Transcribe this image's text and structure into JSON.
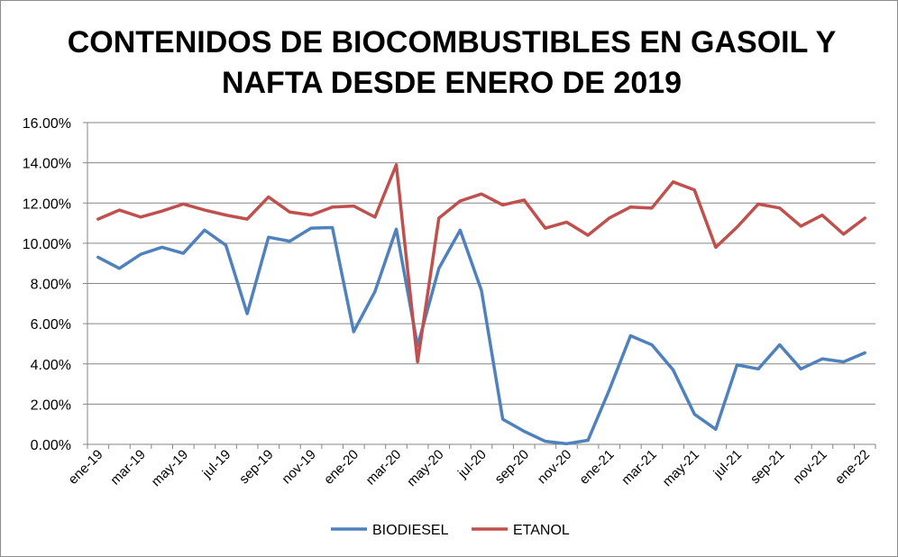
{
  "chart_data": {
    "type": "line",
    "title_lines": [
      "CONTENIDOS DE BIOCOMBUSTIBLES EN GASOIL Y",
      "NAFTA DESDE ENERO DE 2019"
    ],
    "xlabel": "",
    "ylabel": "",
    "ylim": [
      0,
      0.16
    ],
    "y_ticks": [
      "0.00%",
      "2.00%",
      "4.00%",
      "6.00%",
      "8.00%",
      "10.00%",
      "12.00%",
      "14.00%",
      "16.00%"
    ],
    "x_tick_labels": [
      "ene-19",
      "mar-19",
      "may-19",
      "jul-19",
      "sep-19",
      "nov-19",
      "ene-20",
      "mar-20",
      "may-20",
      "jul-20",
      "sep-20",
      "nov-20",
      "ene-21",
      "mar-21",
      "may-21",
      "jul-21",
      "sep-21",
      "nov-21",
      "ene-22"
    ],
    "grid": "horizontal",
    "legend_position": "bottom",
    "colors": {
      "biodiesel": "#4f81bd",
      "etanol": "#c0504d",
      "grid": "#868686"
    },
    "series": [
      {
        "name": "BIODIESEL",
        "color": "#4f81bd",
        "values": [
          0.093,
          0.0875,
          0.0945,
          0.098,
          0.095,
          0.1065,
          0.099,
          0.065,
          0.103,
          0.101,
          0.1075,
          0.1078,
          0.056,
          0.076,
          0.107,
          0.049,
          0.0875,
          0.1065,
          0.0765,
          0.0125,
          0.0065,
          0.0015,
          0.0003,
          0.002,
          0.027,
          0.054,
          0.0495,
          0.037,
          0.015,
          0.0075,
          0.0395,
          0.0375,
          0.0495,
          0.0375,
          0.0425,
          0.041,
          0.0455
        ]
      },
      {
        "name": "ETANOL",
        "color": "#c0504d",
        "values": [
          0.112,
          0.1165,
          0.113,
          0.116,
          0.1195,
          0.1165,
          0.114,
          0.112,
          0.123,
          0.1155,
          0.114,
          0.118,
          0.1185,
          0.113,
          0.139,
          0.041,
          0.1125,
          0.121,
          0.1245,
          0.119,
          0.1215,
          0.1075,
          0.1105,
          0.104,
          0.1125,
          0.118,
          0.1175,
          0.1305,
          0.1265,
          0.098,
          0.108,
          0.1195,
          0.1175,
          0.1085,
          0.114,
          0.1045,
          0.1125
        ]
      }
    ]
  }
}
